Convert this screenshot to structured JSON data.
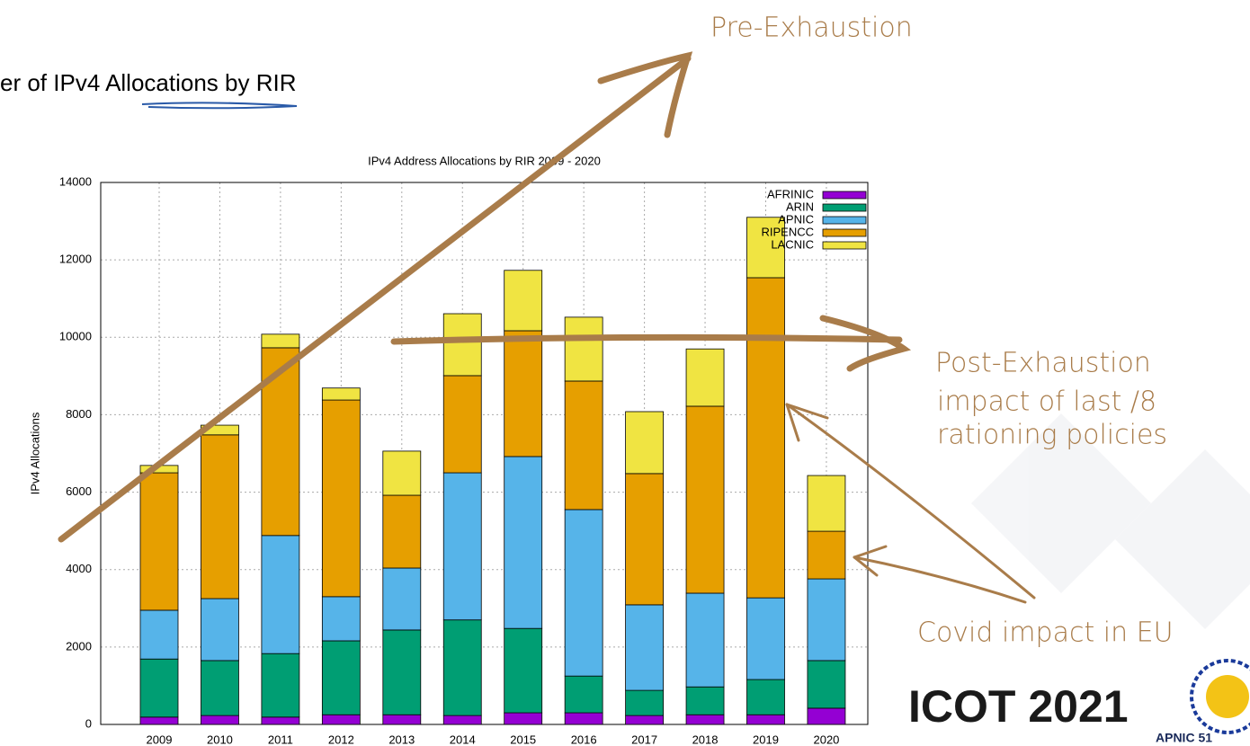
{
  "slide_title": "er of IPv4 Allocations by RIR",
  "annotations": {
    "pre": "Pre-Exhaustion",
    "post": "Post-Exhaustion",
    "post_line2": "impact of last /8",
    "post_line3": "rationing policies",
    "covid": "Covid impact in EU"
  },
  "logo": {
    "text": "ICOT 2021",
    "sub": "APNIC 51"
  },
  "chart_data": {
    "type": "stacked_bar",
    "title": "IPv4 Address Allocations by RIR 2009 - 2020",
    "y_label": "IPv4 Allocations",
    "categories": [
      "2009",
      "2010",
      "2011",
      "2012",
      "2013",
      "2014",
      "2015",
      "2016",
      "2017",
      "2018",
      "2019",
      "2020"
    ],
    "series": [
      {
        "name": "AFRINIC",
        "color": "#9400d3",
        "values": [
          190,
          230,
          190,
          250,
          250,
          230,
          300,
          300,
          230,
          250,
          250,
          420
        ]
      },
      {
        "name": "ARIN",
        "color": "#009e73",
        "values": [
          1500,
          1420,
          1640,
          1910,
          2190,
          2470,
          2180,
          950,
          650,
          720,
          910,
          1230
        ]
      },
      {
        "name": "APNIC",
        "color": "#56b4e9",
        "values": [
          1260,
          1600,
          3050,
          1140,
          1600,
          3800,
          4440,
          4300,
          2210,
          2420,
          2110,
          2110
        ]
      },
      {
        "name": "RIPENCC",
        "color": "#e69f00",
        "values": [
          3550,
          4230,
          4850,
          5080,
          1880,
          2510,
          3250,
          3320,
          3390,
          4830,
          8270,
          1230
        ]
      },
      {
        "name": "LACNIC",
        "color": "#f0e442",
        "values": [
          190,
          250,
          350,
          310,
          1140,
          1600,
          1560,
          1650,
          1600,
          1480,
          1560,
          1440
        ]
      }
    ],
    "ylim": [
      0,
      14000
    ],
    "yticks": [
      0,
      2000,
      4000,
      6000,
      8000,
      10000,
      12000,
      14000
    ],
    "grid": true,
    "legend": "top-right"
  }
}
